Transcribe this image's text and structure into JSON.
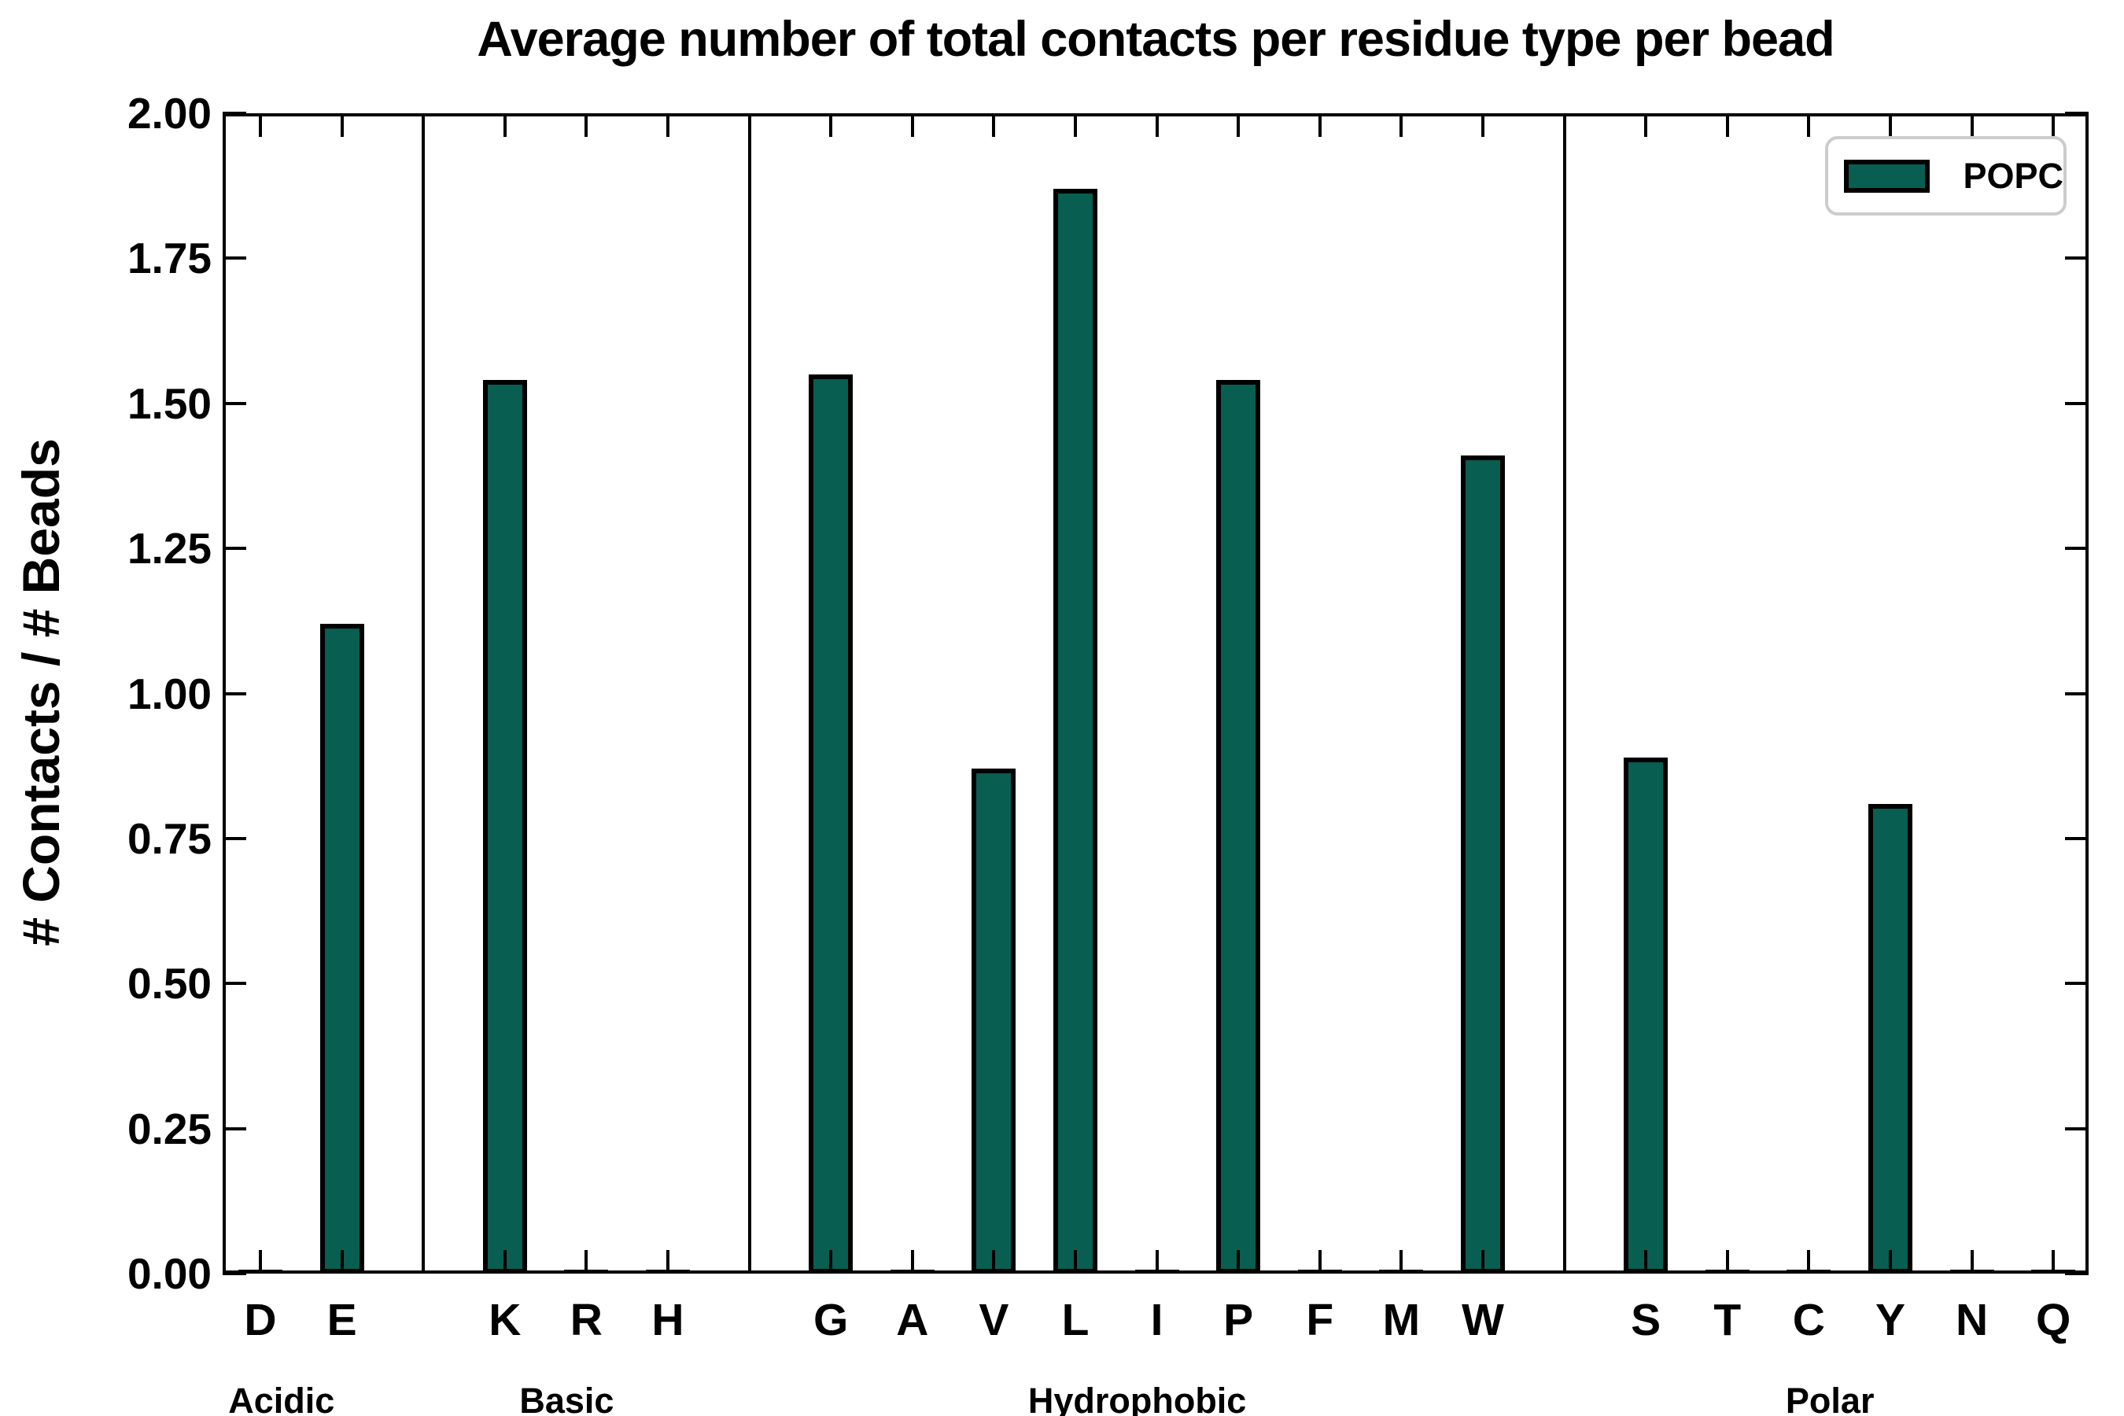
{
  "title": "Average number of total contacts per residue type per bead",
  "chart_data": {
    "type": "bar",
    "title": "Average number of total contacts per residue type per bead",
    "xlabel": "",
    "ylabel": "# Contacts / # Beads",
    "ylim": [
      0.0,
      2.0
    ],
    "yticks": [
      0.0,
      0.25,
      0.5,
      0.75,
      1.0,
      1.25,
      1.5,
      1.75,
      2.0
    ],
    "ytick_labels": [
      "0.00",
      "0.25",
      "0.50",
      "0.75",
      "1.00",
      "1.25",
      "1.50",
      "1.75",
      "2.00"
    ],
    "grid": false,
    "legend": {
      "position": "upper right",
      "entries": [
        {
          "label": "POPC",
          "color": "#085E50"
        }
      ]
    },
    "bar_fill_color": "#085E50",
    "bar_edge_color": "#000000",
    "groups": [
      {
        "name": "Acidic",
        "categories": [
          "D",
          "E"
        ],
        "values": [
          0,
          1.12
        ]
      },
      {
        "name": "Basic",
        "categories": [
          "K",
          "R",
          "H"
        ],
        "values": [
          1.54,
          0,
          0
        ]
      },
      {
        "name": "Hydrophobic",
        "categories": [
          "G",
          "A",
          "V",
          "L",
          "I",
          "P",
          "F",
          "M",
          "W"
        ],
        "values": [
          1.55,
          0,
          0.87,
          1.87,
          0,
          1.54,
          0,
          0,
          1.41
        ]
      },
      {
        "name": "Polar",
        "categories": [
          "S",
          "T",
          "C",
          "Y",
          "N",
          "Q"
        ],
        "values": [
          0.89,
          0,
          0,
          0.81,
          0,
          0
        ]
      }
    ]
  }
}
